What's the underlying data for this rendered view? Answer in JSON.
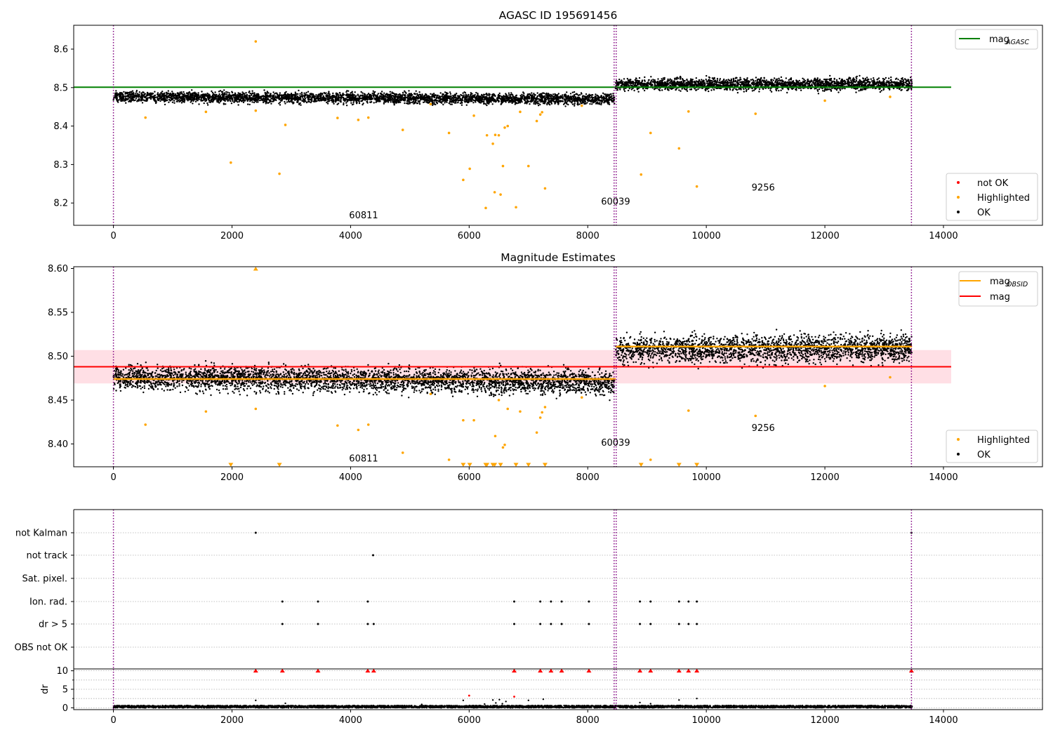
{
  "figure": {
    "panels": {
      "top": {
        "title": "AGASC ID 195691456"
      },
      "middle": {
        "title": "Magnitude Estimates"
      },
      "bottom": {
        "title": ""
      }
    }
  },
  "colors": {
    "ok": "#000000",
    "highlighted": "#ffa500",
    "not_ok": "#ff0000",
    "agasc_line": "#008000",
    "mag_line": "#ff0000",
    "mag_band": "#ffc0cb",
    "obsid_line": "#ffa500",
    "obs_boundary": "#800080",
    "flag_grid": "#b0b0b0"
  },
  "chart_data": [
    {
      "type": "scatter",
      "title": "AGASC ID 195691456",
      "xlabel": "",
      "ylabel": "",
      "xlim": [
        -670,
        15670
      ],
      "ylim": [
        8.142,
        8.662
      ],
      "xticks": [
        0,
        2000,
        4000,
        6000,
        8000,
        10000,
        12000,
        14000
      ],
      "yticks": [
        8.2,
        8.3,
        8.4,
        8.5,
        8.6
      ],
      "yticklabels": [
        "8.2",
        "8.3",
        "8.4",
        "8.5",
        "8.6"
      ],
      "grid": false,
      "legends": [
        {
          "placement": "upper-right",
          "entries": [
            {
              "label": "mag",
              "sub": "AGASC",
              "marker": "line",
              "color": "#008000"
            }
          ]
        },
        {
          "placement": "lower-right",
          "entries": [
            {
              "label": "not OK",
              "marker": "dot",
              "color": "#ff0000"
            },
            {
              "label": "Highlighted",
              "marker": "dot",
              "color": "#ffa500"
            },
            {
              "label": "OK",
              "marker": "dot",
              "color": "#000000"
            }
          ]
        }
      ],
      "obs_boundaries": [
        0,
        8445,
        8480,
        13460
      ],
      "obs_labels": [
        {
          "text": "60811",
          "x": 4220,
          "y": 8.16
        },
        {
          "text": "60039",
          "x": 8470,
          "y": 8.196
        },
        {
          "text": "9256",
          "x": 10960,
          "y": 8.232
        }
      ],
      "reference_lines": [
        {
          "name": "mag_AGASC",
          "y": 8.501,
          "x": [
            -670,
            14130
          ],
          "color": "#008000"
        }
      ],
      "ok_segments": [
        {
          "x": [
            0,
            8450
          ],
          "center": [
            8.476,
            8.47
          ],
          "spread": 0.009
        },
        {
          "x": [
            8470,
            13470
          ],
          "center": [
            8.508,
            8.509
          ],
          "spread": 0.01
        }
      ],
      "highlighted_points": {
        "x": [
          2400,
          540,
          1560,
          1980,
          2400,
          2800,
          2900,
          3780,
          4130,
          4300,
          4880,
          5660,
          5900,
          6010,
          6080,
          6280,
          6300,
          6400,
          6430,
          6440,
          6500,
          6530,
          6570,
          6600,
          6650,
          6790,
          6860,
          7000,
          7140,
          7200,
          7230,
          7280,
          9060,
          8900,
          9540,
          9700,
          9840,
          10830,
          12000,
          13100,
          7900,
          5350
        ],
        "y": [
          8.62,
          8.422,
          8.437,
          8.305,
          8.44,
          8.276,
          8.403,
          8.421,
          8.416,
          8.422,
          8.39,
          8.382,
          8.26,
          8.289,
          8.427,
          8.187,
          8.376,
          8.354,
          8.228,
          8.377,
          8.376,
          8.222,
          8.296,
          8.396,
          8.4,
          8.189,
          8.437,
          8.296,
          8.413,
          8.43,
          8.436,
          8.238,
          8.382,
          8.274,
          8.342,
          8.438,
          8.243,
          8.432,
          8.466,
          8.476,
          8.453,
          8.457
        ]
      },
      "not_ok_points": {
        "x": [],
        "y": []
      }
    },
    {
      "type": "scatter",
      "title": "Magnitude Estimates",
      "xlabel": "",
      "ylabel": "",
      "xlim": [
        -670,
        15670
      ],
      "ylim": [
        8.374,
        8.602
      ],
      "xticks": [
        0,
        2000,
        4000,
        6000,
        8000,
        10000,
        12000,
        14000
      ],
      "yticks": [
        8.4,
        8.45,
        8.5,
        8.55,
        8.6
      ],
      "yticklabels": [
        "8.40",
        "8.45",
        "8.50",
        "8.55",
        "8.60"
      ],
      "grid": false,
      "legends": [
        {
          "placement": "upper-right",
          "entries": [
            {
              "label": "mag",
              "sub": "OBSID",
              "marker": "line",
              "color": "#ffa500"
            },
            {
              "label": "mag",
              "marker": "line",
              "color": "#ff0000"
            }
          ]
        },
        {
          "placement": "lower-right",
          "entries": [
            {
              "label": "Highlighted",
              "marker": "dot",
              "color": "#ffa500"
            },
            {
              "label": "OK",
              "marker": "dot",
              "color": "#000000"
            }
          ]
        }
      ],
      "obs_boundaries": [
        0,
        8445,
        8480,
        13460
      ],
      "obs_labels": [
        {
          "text": "60811",
          "x": 4220,
          "y": 8.38
        },
        {
          "text": "60039",
          "x": 8470,
          "y": 8.398
        },
        {
          "text": "9256",
          "x": 10960,
          "y": 8.415
        }
      ],
      "reference_lines": [
        {
          "name": "mag",
          "y": 8.488,
          "x": [
            -670,
            14130
          ],
          "color": "#ff0000",
          "band": [
            8.469,
            8.507
          ]
        },
        {
          "name": "mag_OBSID",
          "segments": [
            {
              "x": [
                0,
                8470
              ],
              "y": 8.474
            },
            {
              "x": [
                8470,
                13470
              ],
              "y": 8.511
            }
          ],
          "color": "#ffa500"
        }
      ],
      "ok_segments": [
        {
          "x": [
            0,
            8450
          ],
          "center": [
            8.476,
            8.47
          ],
          "spread": 0.009
        },
        {
          "x": [
            8470,
            13470
          ],
          "center": [
            8.508,
            8.509
          ],
          "spread": 0.01
        }
      ],
      "highlighted_points": {
        "x": [
          540,
          1560,
          3780,
          4130,
          4300,
          4880,
          5660,
          5900,
          6080,
          6440,
          6500,
          6570,
          6600,
          6650,
          6860,
          7140,
          7200,
          7230,
          7280,
          9060,
          9700,
          10830,
          12000,
          13100,
          7900,
          5350,
          2400
        ],
        "y": [
          8.422,
          8.437,
          8.421,
          8.416,
          8.422,
          8.39,
          8.382,
          8.427,
          8.427,
          8.409,
          8.45,
          8.396,
          8.399,
          8.44,
          8.437,
          8.413,
          8.43,
          8.436,
          8.442,
          8.382,
          8.438,
          8.432,
          8.466,
          8.476,
          8.453,
          8.457,
          8.44
        ]
      },
      "clipped_low_x": [
        1980,
        2800,
        5900,
        6010,
        6280,
        6300,
        6400,
        6430,
        6530,
        6790,
        7000,
        7280,
        8900,
        9540,
        9840
      ],
      "clipped_high_x": [
        2400
      ],
      "not_ok_points": {
        "x": [],
        "y": []
      }
    },
    {
      "type": "scatter",
      "title": "",
      "xlabel": "",
      "ylabel": "",
      "xlim": [
        -670,
        15670
      ],
      "flag_categories": [
        "not Kalman",
        "not track",
        "Sat. pixel.",
        "Ion. rad.",
        "dr > 5",
        "OBS not OK"
      ],
      "flags": {
        "not Kalman": [
          2400,
          13460
        ],
        "not track": [
          4380
        ],
        "Sat. pixel.": [],
        "Ion. rad.": [
          2850,
          3450,
          4290,
          6760,
          7200,
          7380,
          7560,
          8020,
          8880,
          9060,
          9540,
          9700,
          9840
        ],
        "dr > 5": [
          2850,
          3450,
          4290,
          4390,
          6760,
          7200,
          7380,
          7560,
          8020,
          8880,
          9060,
          9540,
          9700,
          9840
        ],
        "OBS not OK": []
      },
      "obs_boundaries": [
        0,
        8445,
        8480,
        13460
      ],
      "grid": true
    },
    {
      "type": "scatter",
      "title": "",
      "xlabel": "",
      "ylabel": "dr",
      "xlim": [
        -670,
        15670
      ],
      "ylim": [
        -0.5,
        10.5
      ],
      "yticks": [
        0,
        5,
        10
      ],
      "yticklabels": [
        "0",
        "5",
        "10"
      ],
      "grid": true,
      "obs_boundaries": [
        0,
        8445,
        8480,
        13460
      ],
      "clipped_high_x": [
        2400,
        2850,
        3450,
        4290,
        4390,
        6760,
        7200,
        7380,
        7560,
        8020,
        8880,
        9060,
        9540,
        9700,
        9840,
        13460
      ],
      "ok_level": [
        0,
        0.6
      ],
      "outlier_points": {
        "x": [
          2400,
          6260,
          6400,
          6450,
          6510,
          6560,
          6620,
          7000,
          7250,
          8880,
          9060,
          9540,
          9840,
          5900,
          5200,
          2900
        ],
        "y": [
          2.0,
          1.0,
          2.1,
          1.3,
          2.2,
          1.1,
          1.7,
          2.0,
          2.3,
          1.4,
          1.1,
          2.1,
          2.5,
          2.0,
          0.9,
          1.2
        ]
      },
      "not_ok_points": {
        "x": [
          6000,
          6760
        ],
        "y": [
          3.3,
          3.0
        ]
      }
    }
  ]
}
